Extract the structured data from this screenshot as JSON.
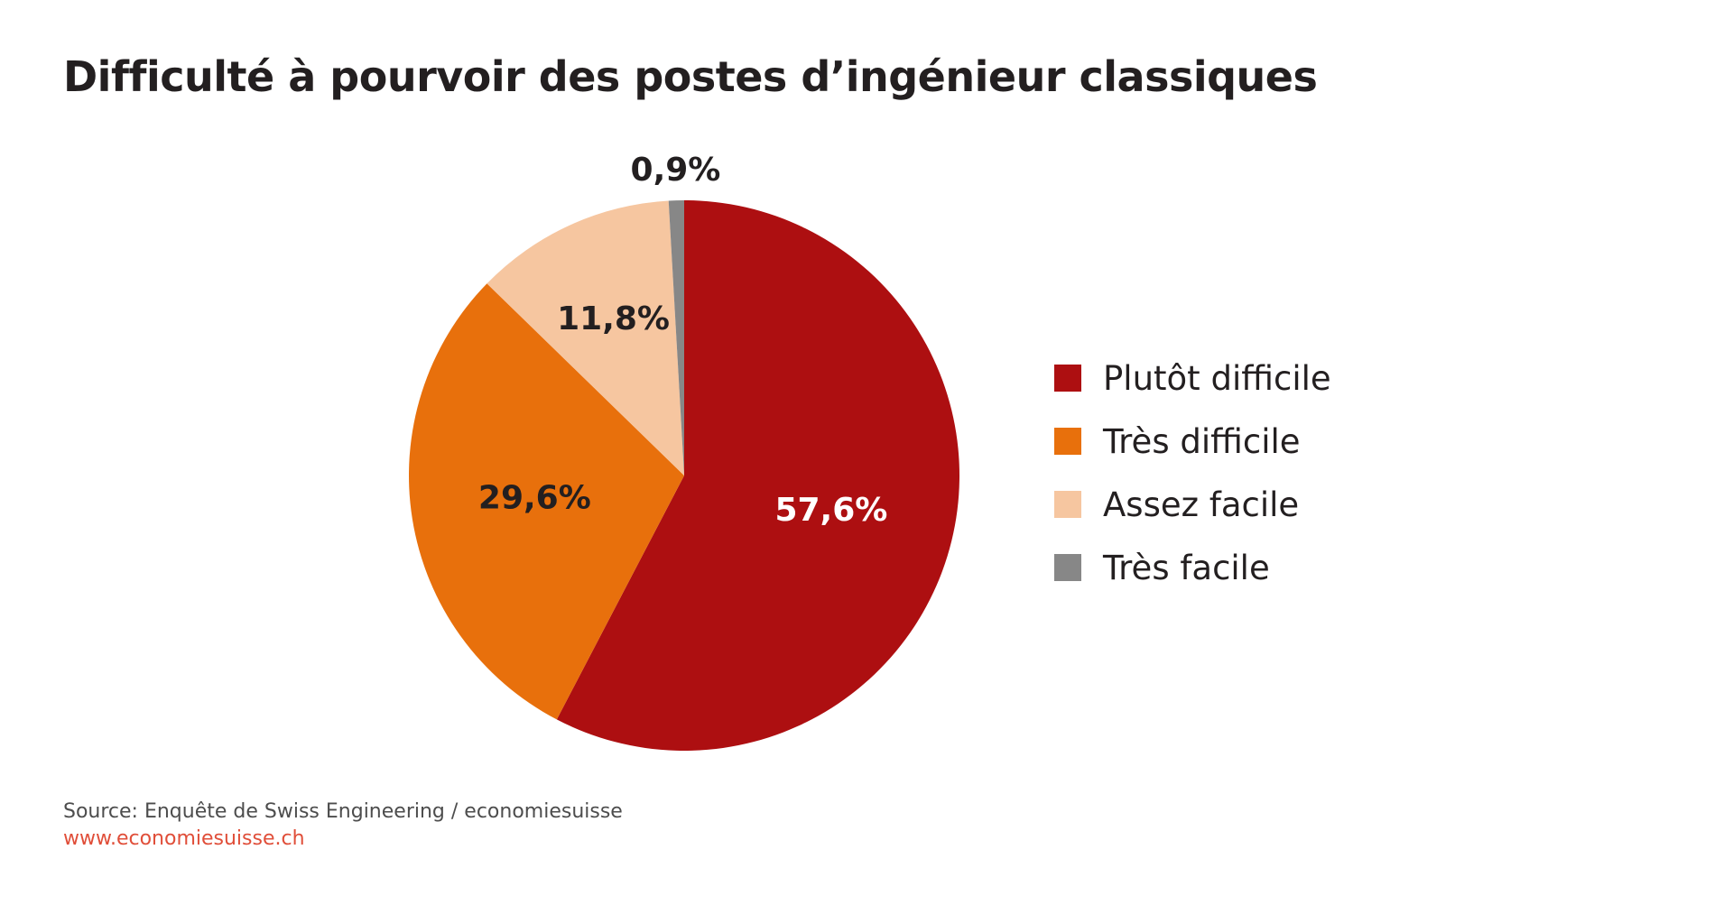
{
  "title": "Difficulté à pourvoir des postes d’ingénieur classiques",
  "chart_data": {
    "type": "pie",
    "title": "Difficulté à pourvoir des postes d’ingénieur classiques",
    "start": "12 o'clock",
    "direction": "clockwise",
    "slices": [
      {
        "label": "Plutôt difficile",
        "value": 57.6,
        "display": "57,6%",
        "color": "#ad0f11",
        "label_color": "#ffffff"
      },
      {
        "label": "Très difficile",
        "value": 29.6,
        "display": "29,6%",
        "color": "#e8700c",
        "label_color": "#231f20"
      },
      {
        "label": "Assez facile",
        "value": 11.8,
        "display": "11,8%",
        "color": "#f6c6a0",
        "label_color": "#231f20"
      },
      {
        "label": "Très facile",
        "value": 0.9,
        "display": "0,9%",
        "color": "#878787",
        "label_color": "#231f20"
      }
    ],
    "legend_position": "right"
  },
  "legend": {
    "items": [
      {
        "label": "Plutôt difficile",
        "color": "#ad0f11"
      },
      {
        "label": "Très difficile",
        "color": "#e8700c"
      },
      {
        "label": "Assez facile",
        "color": "#f6c6a0"
      },
      {
        "label": "Très facile",
        "color": "#878787"
      }
    ]
  },
  "footer": {
    "source": "Source: Enquête de Swiss Engineering / economiesuisse",
    "website": "www.economiesuisse.ch"
  }
}
